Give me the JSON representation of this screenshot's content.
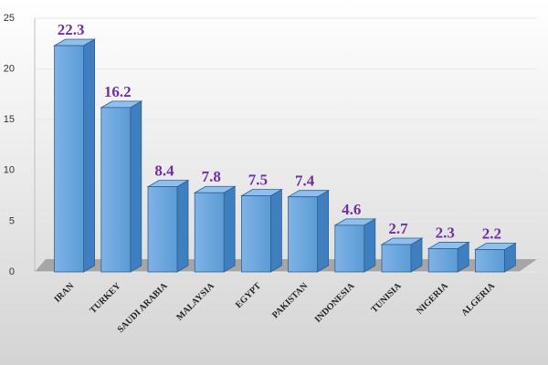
{
  "chart_data": {
    "type": "bar3d",
    "categories": [
      "IRAN",
      "TURKEY",
      "SAUDI ARABIA",
      "MALAYSIA",
      "EGYPT",
      "PAKISTAN",
      "INDONESIA",
      "TUNISIA",
      "NIGERIA",
      "ALGERIA"
    ],
    "values": [
      22.3,
      16.2,
      8.4,
      7.8,
      7.5,
      7.4,
      4.6,
      2.7,
      2.3,
      2.2
    ],
    "color": "#5b9bd5",
    "ylim": [
      0,
      25
    ],
    "yticks": [
      0,
      5,
      10,
      15,
      20,
      25
    ],
    "grid": true
  }
}
